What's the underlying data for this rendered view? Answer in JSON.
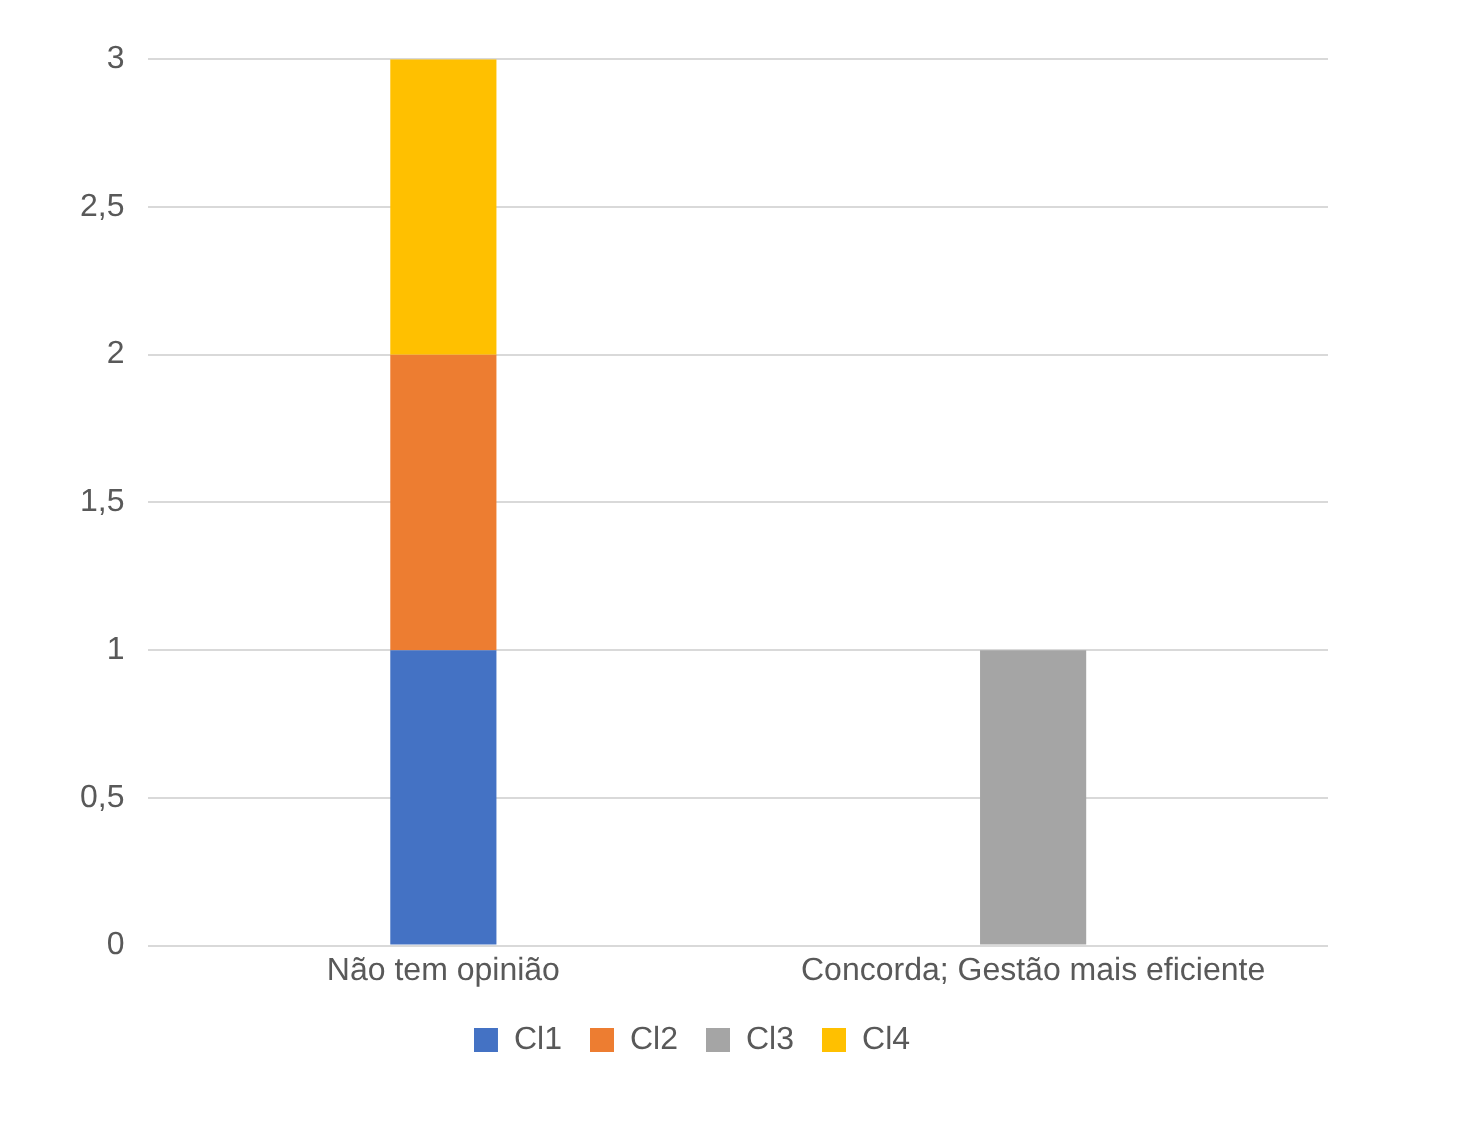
{
  "chart_data": {
    "type": "bar",
    "stacked": true,
    "categories": [
      "Não tem opinião",
      "Concorda; Gestão mais eficiente"
    ],
    "series": [
      {
        "name": "Cl1",
        "color": "#4472c4",
        "values": [
          1,
          null
        ]
      },
      {
        "name": "Cl2",
        "color": "#ed7d31",
        "values": [
          1,
          null
        ]
      },
      {
        "name": "Cl3",
        "color": "#a5a5a5",
        "values": [
          null,
          1
        ]
      },
      {
        "name": "Cl4",
        "color": "#ffc000",
        "values": [
          1,
          null
        ]
      }
    ],
    "ylim": [
      0,
      3
    ],
    "yticks": [
      0,
      {
        "value": 0.5,
        "label": "0,5"
      },
      1,
      {
        "value": 1.5,
        "label": "1,5"
      },
      2,
      {
        "value": 2.5,
        "label": "2,5"
      },
      3
    ],
    "grid": "y",
    "legend": "bottom"
  }
}
